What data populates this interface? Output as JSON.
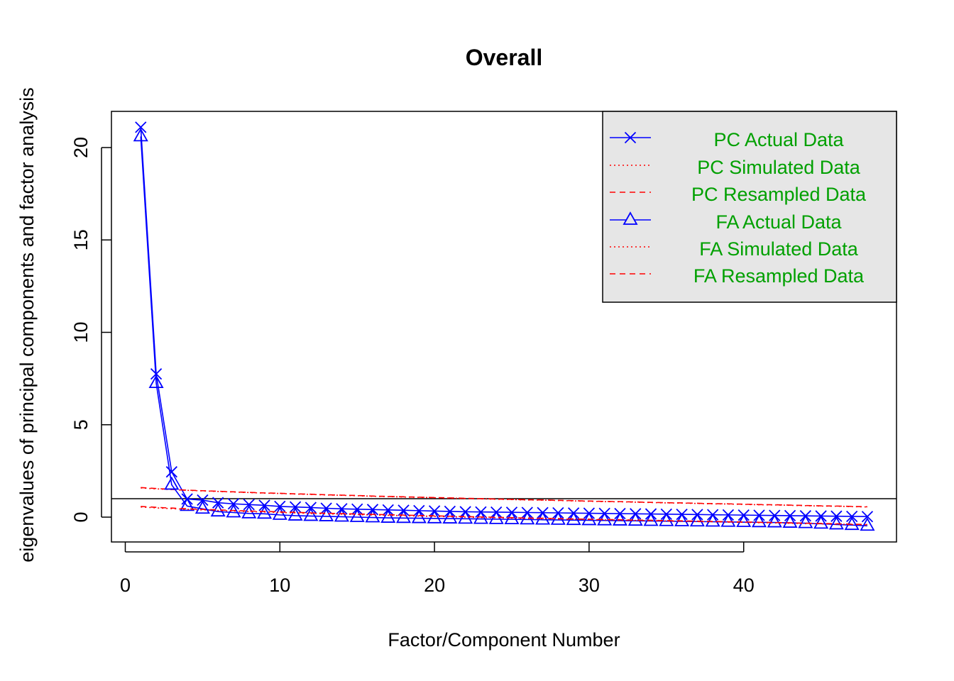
{
  "chart_data": {
    "type": "line",
    "title": "Overall",
    "xlabel": "Factor/Component Number",
    "ylabel": "eigenvalues of principal components and factor analysis",
    "xlim": [
      0,
      49
    ],
    "ylim": [
      -1.3,
      22
    ],
    "x_ticks": [
      "0",
      "10",
      "20",
      "30",
      "40"
    ],
    "y_ticks": [
      "0",
      "5",
      "10",
      "15",
      "20"
    ],
    "reference_line_y": 1,
    "legend_position": "top-right",
    "legend": [
      {
        "prefix": "PC",
        "label": "Actual Data"
      },
      {
        "prefix": "PC",
        "label": "Simulated Data"
      },
      {
        "prefix": "PC",
        "label": "Resampled Data"
      },
      {
        "prefix": "FA",
        "label": "Actual Data"
      },
      {
        "prefix": "FA",
        "label": "Simulated Data"
      },
      {
        "prefix": "FA",
        "label": "Resampled Data"
      }
    ],
    "x": [
      1,
      2,
      3,
      4,
      5,
      6,
      7,
      8,
      9,
      10,
      11,
      12,
      13,
      14,
      15,
      16,
      17,
      18,
      19,
      20,
      21,
      22,
      23,
      24,
      25,
      26,
      27,
      28,
      29,
      30,
      31,
      32,
      33,
      34,
      35,
      36,
      37,
      38,
      39,
      40,
      41,
      42,
      43,
      44,
      45,
      46,
      47,
      48
    ],
    "series": [
      {
        "name": "PC Actual Data",
        "marker": "x",
        "line": "solid",
        "color": "#0000ff",
        "values": [
          21.1,
          7.75,
          2.45,
          0.98,
          0.92,
          0.78,
          0.72,
          0.68,
          0.64,
          0.58,
          0.55,
          0.52,
          0.48,
          0.45,
          0.43,
          0.41,
          0.39,
          0.37,
          0.35,
          0.33,
          0.31,
          0.29,
          0.28,
          0.27,
          0.26,
          0.25,
          0.24,
          0.23,
          0.22,
          0.21,
          0.2,
          0.19,
          0.18,
          0.17,
          0.16,
          0.15,
          0.14,
          0.13,
          0.12,
          0.11,
          0.1,
          0.09,
          0.08,
          0.07,
          0.06,
          0.05,
          0.04,
          0.03
        ]
      },
      {
        "name": "PC Simulated Data",
        "line": "dotted",
        "color": "#ff0000",
        "values": [
          1.58,
          1.53,
          1.49,
          1.45,
          1.42,
          1.39,
          1.36,
          1.33,
          1.3,
          1.28,
          1.25,
          1.23,
          1.2,
          1.18,
          1.16,
          1.13,
          1.11,
          1.09,
          1.07,
          1.05,
          1.03,
          1.01,
          0.99,
          0.97,
          0.95,
          0.93,
          0.92,
          0.9,
          0.88,
          0.86,
          0.84,
          0.83,
          0.81,
          0.79,
          0.77,
          0.76,
          0.74,
          0.72,
          0.71,
          0.69,
          0.67,
          0.66,
          0.64,
          0.62,
          0.6,
          0.59,
          0.57,
          0.55
        ]
      },
      {
        "name": "PC Resampled Data",
        "line": "dashed",
        "color": "#ff0000",
        "values": [
          1.6,
          1.55,
          1.5,
          1.46,
          1.43,
          1.4,
          1.37,
          1.34,
          1.31,
          1.29,
          1.26,
          1.24,
          1.21,
          1.19,
          1.17,
          1.14,
          1.12,
          1.1,
          1.08,
          1.06,
          1.04,
          1.02,
          1.0,
          0.98,
          0.96,
          0.94,
          0.93,
          0.91,
          0.89,
          0.87,
          0.85,
          0.84,
          0.82,
          0.8,
          0.78,
          0.77,
          0.75,
          0.73,
          0.72,
          0.7,
          0.68,
          0.67,
          0.65,
          0.63,
          0.61,
          0.6,
          0.58,
          0.56
        ]
      },
      {
        "name": "FA Actual Data",
        "marker": "triangle",
        "line": "solid",
        "color": "#0000ff",
        "values": [
          20.6,
          7.25,
          1.75,
          0.6,
          0.45,
          0.3,
          0.25,
          0.2,
          0.18,
          0.12,
          0.08,
          0.06,
          0.04,
          0.02,
          0.0,
          -0.02,
          -0.04,
          -0.05,
          -0.06,
          -0.07,
          -0.08,
          -0.09,
          -0.1,
          -0.11,
          -0.12,
          -0.13,
          -0.14,
          -0.15,
          -0.16,
          -0.17,
          -0.18,
          -0.19,
          -0.2,
          -0.21,
          -0.22,
          -0.23,
          -0.24,
          -0.25,
          -0.26,
          -0.27,
          -0.28,
          -0.29,
          -0.31,
          -0.33,
          -0.36,
          -0.4,
          -0.43,
          -0.47
        ]
      },
      {
        "name": "FA Simulated Data",
        "line": "dotted",
        "color": "#ff0000",
        "values": [
          0.55,
          0.5,
          0.46,
          0.42,
          0.39,
          0.36,
          0.33,
          0.3,
          0.28,
          0.25,
          0.23,
          0.2,
          0.18,
          0.16,
          0.14,
          0.12,
          0.1,
          0.08,
          0.06,
          0.04,
          0.02,
          0.0,
          -0.02,
          -0.03,
          -0.05,
          -0.07,
          -0.08,
          -0.1,
          -0.12,
          -0.13,
          -0.15,
          -0.16,
          -0.18,
          -0.19,
          -0.21,
          -0.22,
          -0.24,
          -0.25,
          -0.27,
          -0.28,
          -0.3,
          -0.31,
          -0.33,
          -0.35,
          -0.36,
          -0.38,
          -0.4,
          -0.42
        ]
      },
      {
        "name": "FA Resampled Data",
        "line": "dashed",
        "color": "#ff0000",
        "values": [
          0.58,
          0.53,
          0.49,
          0.45,
          0.42,
          0.39,
          0.36,
          0.33,
          0.31,
          0.28,
          0.26,
          0.23,
          0.21,
          0.19,
          0.17,
          0.15,
          0.13,
          0.11,
          0.09,
          0.07,
          0.05,
          0.03,
          0.01,
          -0.01,
          -0.03,
          -0.05,
          -0.06,
          -0.08,
          -0.1,
          -0.11,
          -0.13,
          -0.14,
          -0.16,
          -0.17,
          -0.19,
          -0.2,
          -0.22,
          -0.23,
          -0.25,
          -0.26,
          -0.28,
          -0.29,
          -0.31,
          -0.33,
          -0.34,
          -0.36,
          -0.38,
          -0.4
        ]
      }
    ],
    "colors": {
      "actual": "#0000ff",
      "simulated": "#ff0000",
      "legend_text": "#00a000",
      "legend_bg": "#e6e6e6"
    }
  }
}
